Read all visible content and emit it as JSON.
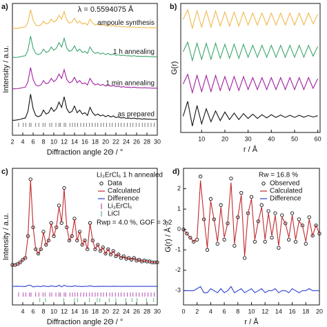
{
  "chart_data": [
    {
      "type": "line",
      "panel": "a)",
      "title": "λ = 0.5594075 Å",
      "xlabel": "Diffraction angle 2Θ / °",
      "ylabel": "Intensity / a.u.",
      "legend": "inline",
      "x": [
        2,
        2.5,
        3,
        3.5,
        4,
        4.5,
        5,
        5.5,
        6,
        6.5,
        7,
        7.5,
        8,
        8.5,
        9,
        9.5,
        10,
        10.5,
        11,
        11.5,
        12,
        12.5,
        13,
        13.5,
        14,
        14.5,
        15,
        15.5,
        16,
        16.5,
        17,
        17.5,
        18,
        18.5,
        19,
        19.5,
        20,
        20.5,
        21,
        21.5,
        22,
        22.5,
        23,
        23.5,
        24,
        24.5,
        25,
        25.5,
        26,
        26.5,
        27,
        27.5,
        28,
        28.5,
        29,
        29.5,
        30
      ],
      "xlim": [
        2,
        30
      ],
      "xticks": [
        2,
        4,
        6,
        8,
        10,
        12,
        14,
        16,
        18,
        20,
        22,
        24,
        26,
        28,
        30
      ],
      "ylim": [
        -4,
        105
      ],
      "series": [
        {
          "name": "ampoule synthesis",
          "color": "#f0b84a",
          "values": [
            84.3,
            84.3,
            84.5,
            84.8,
            85.3,
            85.6,
            89.6,
            100,
            91.2,
            87.2,
            86.4,
            87.2,
            90.4,
            88,
            88.8,
            92,
            89.6,
            91.2,
            95.2,
            92,
            98.4,
            91.2,
            88.8,
            89.6,
            92.8,
            88.8,
            90.4,
            88,
            88.8,
            87.2,
            92,
            88.8,
            87.2,
            88,
            86.9,
            87.5,
            86.4,
            87.2,
            86.2,
            86.9,
            85.9,
            86.2,
            85.6,
            85.9,
            85.4,
            85.6,
            85.3,
            85.6,
            85.1,
            85.3,
            85,
            85.1,
            85,
            85,
            84.8,
            84.8,
            84.8
          ]
        },
        {
          "name": "1 h annealing",
          "color": "#3aa56b",
          "values": [
            60.4,
            60.4,
            60.5,
            60.9,
            61.4,
            61.8,
            66.3,
            78,
            68.1,
            63.6,
            62.7,
            63.6,
            67.2,
            64.5,
            65.4,
            69,
            66.3,
            68.1,
            72.6,
            69,
            76.2,
            68.1,
            65.4,
            66.3,
            69.9,
            65.4,
            67.2,
            64.5,
            65.4,
            63.6,
            69,
            65.4,
            63.6,
            64.5,
            63.2,
            64,
            62.7,
            63.6,
            62.5,
            63.2,
            62.2,
            62.5,
            61.8,
            62.2,
            61.6,
            61.8,
            61.4,
            61.8,
            61.3,
            61.4,
            61.1,
            61.3,
            61.1,
            61.1,
            60.9,
            60.9,
            60.9
          ]
        },
        {
          "name": "1 min annealing",
          "color": "#a020a0",
          "values": [
            34.4,
            34.4,
            34.5,
            34.9,
            35.4,
            35.8,
            40.3,
            52,
            42.1,
            37.6,
            36.7,
            37.6,
            41.2,
            38.5,
            39.4,
            43,
            40.3,
            42.1,
            46.6,
            43,
            50.2,
            42.1,
            39.4,
            40.3,
            43.9,
            39.4,
            41.2,
            38.5,
            39.4,
            37.6,
            43,
            39.4,
            37.6,
            38.5,
            37.2,
            38,
            36.7,
            37.6,
            36.5,
            37.2,
            36.2,
            36.5,
            35.8,
            36.2,
            35.6,
            35.8,
            35.4,
            35.8,
            35.3,
            35.4,
            35.1,
            35.3,
            35.1,
            35.1,
            34.9,
            34.9,
            34.9
          ]
        },
        {
          "name": "as prepared",
          "color": "#111111",
          "values": [
            8.4,
            8.4,
            8.7,
            9.1,
            9.8,
            10.2,
            15.7,
            30,
            17.9,
            12.4,
            11.3,
            12.4,
            16.8,
            13.5,
            14.6,
            19,
            15.7,
            17.9,
            23.4,
            19,
            27.8,
            17.9,
            14.6,
            15.7,
            20.1,
            14.6,
            16.8,
            13.5,
            14.6,
            12.4,
            19,
            14.6,
            12.4,
            13.5,
            12,
            12.8,
            11.3,
            12.4,
            11.1,
            12,
            10.6,
            11.1,
            10.2,
            10.6,
            10,
            10.2,
            9.8,
            10.2,
            9.5,
            9.8,
            9.3,
            9.5,
            9.3,
            9.3,
            9.1,
            9.1,
            9.1
          ]
        }
      ],
      "reflections": [
        {
          "color": "#555555",
          "positions": [
            3.2,
            4.1,
            4.6,
            5.3,
            5.6,
            6.5,
            7.1,
            7.9,
            8.3,
            9.2,
            9.6,
            10.4,
            11,
            11.3,
            12,
            12.3,
            13.1,
            13.6,
            14.1,
            14.6,
            15.2,
            15.8,
            16.3,
            16.9,
            17.4,
            18,
            18.5,
            19.1,
            19.6,
            20.2,
            20.8,
            21.3,
            21.9,
            22.5,
            23,
            23.6,
            24.2,
            24.8,
            25.3,
            25.9,
            26.5,
            27.1,
            27.6,
            28.2,
            28.8,
            29.4
          ]
        }
      ]
    },
    {
      "type": "line",
      "panel": "b)",
      "xlabel": "r / Å",
      "ylabel": "G(r)",
      "x": [
        2,
        4,
        6,
        8,
        10,
        12,
        14,
        16,
        18,
        20,
        22,
        24,
        26,
        28,
        30,
        32,
        34,
        36,
        38,
        40,
        42,
        44,
        46,
        48,
        50,
        52,
        54,
        56,
        58,
        60
      ],
      "xlim": [
        1,
        61
      ],
      "xticks": [
        10,
        20,
        30,
        40,
        50,
        60
      ],
      "ylim": [
        -1.5,
        10.5
      ],
      "series": [
        {
          "color": "#f0b84a",
          "values": [
            9,
            9.9,
            8.2,
            9.8,
            8.3,
            9.8,
            8.3,
            9.8,
            8.4,
            9.7,
            8.4,
            9.7,
            8.4,
            9.7,
            8.5,
            9.6,
            8.5,
            9.6,
            8.5,
            9.6,
            8.5,
            9.6,
            8.5,
            9.6,
            8.5,
            9.6,
            8.5,
            9.6,
            8.6,
            9.5
          ]
        },
        {
          "color": "#3aa56b",
          "values": [
            6,
            6.9,
            5.2,
            6.8,
            5.3,
            6.8,
            5.3,
            6.8,
            5.4,
            6.7,
            5.4,
            6.7,
            5.4,
            6.7,
            5.5,
            6.6,
            5.5,
            6.6,
            5.5,
            6.6,
            5.5,
            6.6,
            5.5,
            6.6,
            5.5,
            6.6,
            5.5,
            6.6,
            5.6,
            6.5
          ]
        },
        {
          "color": "#a020a0",
          "values": [
            3,
            3.9,
            2.2,
            3.8,
            2.3,
            3.8,
            2.3,
            3.8,
            2.4,
            3.7,
            2.4,
            3.7,
            2.4,
            3.7,
            2.5,
            3.6,
            2.5,
            3.6,
            2.5,
            3.6,
            2.5,
            3.6,
            2.5,
            3.6,
            2.5,
            3.6,
            2.5,
            3.6,
            2.6,
            3.5
          ]
        },
        {
          "color": "#111111",
          "values": [
            0,
            1.4,
            -0.9,
            1,
            -0.7,
            0.7,
            -0.5,
            0.5,
            -0.4,
            0.4,
            -0.3,
            0.3,
            -0.3,
            0.25,
            -0.2,
            0.2,
            -0.2,
            0.15,
            -0.15,
            0.15,
            -0.1,
            0.12,
            -0.1,
            0.1,
            -0.1,
            0.1,
            -0.08,
            0.08,
            -0.06,
            0.06
          ]
        }
      ]
    },
    {
      "type": "line",
      "panel": "c)",
      "xlabel": "Diffraction angle 2Θ / °",
      "ylabel": "Intensity / a.u.",
      "legend": "upper right",
      "annotations": [
        "Li₃ErCl₆ 1 h annealed",
        "Rwp = 4.0 %, GOF = 3.2"
      ],
      "x": [
        2,
        2.5,
        3,
        3.5,
        4,
        4.5,
        5,
        5.5,
        6,
        6.5,
        7,
        7.5,
        8,
        8.5,
        9,
        9.5,
        10,
        10.5,
        11,
        11.5,
        12,
        12.5,
        13,
        13.5,
        14,
        14.5,
        15,
        15.5,
        16,
        16.5,
        17,
        17.5,
        18,
        18.5,
        19,
        19.5,
        20,
        20.5,
        21,
        21.5,
        22,
        22.5,
        23,
        23.5,
        24,
        24.5,
        25,
        25.5,
        26,
        26.5,
        27,
        27.5,
        28,
        28.5,
        29,
        29.5,
        30
      ],
      "xlim": [
        2,
        30
      ],
      "xticks": [
        4,
        6,
        8,
        10,
        12,
        14,
        16,
        18,
        20,
        22,
        24,
        26,
        28,
        30
      ],
      "ylim": [
        -25,
        100
      ],
      "series": [
        {
          "name": "Data",
          "color": "#111111",
          "marker": "circle",
          "values": [
            11.6,
            11.6,
            12.4,
            14,
            16.4,
            18,
            38,
            90,
            46,
            26,
            22,
            26,
            42,
            30,
            34,
            50,
            38,
            46,
            66,
            50,
            82,
            46,
            34,
            38,
            54,
            34,
            42,
            30,
            34,
            26,
            50,
            34,
            26,
            30,
            24.4,
            27.6,
            22,
            26,
            21.2,
            24.4,
            19.6,
            21.2,
            18,
            19.6,
            17.2,
            18,
            16.4,
            18,
            15.6,
            16.4,
            14.8,
            15.6,
            14.8,
            14.8,
            14,
            14,
            14
          ]
        },
        {
          "name": "Calculated",
          "color": "#c0282e",
          "values": [
            11.5,
            11.6,
            12.3,
            14,
            16.5,
            18.2,
            37,
            89,
            46.5,
            26,
            22,
            26.2,
            41.5,
            30,
            34.2,
            49.5,
            38,
            46.2,
            65,
            50.5,
            81,
            46,
            34,
            38.2,
            53.5,
            34,
            42,
            30.2,
            34,
            26,
            49.5,
            34,
            26.2,
            30,
            24.5,
            27.5,
            22,
            26,
            21.3,
            24.3,
            19.6,
            21.2,
            18.1,
            19.6,
            17.2,
            18,
            16.5,
            18,
            15.6,
            16.4,
            14.8,
            15.6,
            14.8,
            14.8,
            14,
            14,
            14
          ]
        },
        {
          "name": "Difference",
          "color": "#2a3fd1",
          "values": [
            -8,
            -8,
            -7.9,
            -8,
            -8.1,
            -8.2,
            -7,
            -7,
            -8.5,
            -8,
            -8,
            -8.2,
            -7.5,
            -8,
            -8.2,
            -7.5,
            -8,
            -8.2,
            -7,
            -8.5,
            -7,
            -8,
            -8,
            -8.2,
            -7.5,
            -8,
            -8,
            -8.2,
            -8,
            -8,
            -7.5,
            -8,
            -8.2,
            -8,
            -8.1,
            -7.9,
            -8,
            -8,
            -8.1,
            -7.9,
            -8,
            -8,
            -8.1,
            -8,
            -8,
            -8,
            -8.1,
            -8,
            -8,
            -8,
            -8,
            -8,
            -8,
            -8,
            -8,
            -8,
            -8
          ]
        }
      ],
      "reflections": [
        {
          "name": "Li₃ErCl₆",
          "color": "#a020a0",
          "positions": [
            3.2,
            4.1,
            4.6,
            5.3,
            5.6,
            6.5,
            7.1,
            7.9,
            8.3,
            9.2,
            9.6,
            10.4,
            11,
            11.3,
            12,
            12.3,
            13.1,
            13.6,
            14.1,
            14.6,
            15.2,
            15.8,
            16.3,
            16.9,
            17.4,
            18,
            18.5,
            19.1,
            19.6,
            20.2,
            20.8,
            21.3,
            21.9,
            22.5,
            23,
            23.6,
            24.2,
            24.8,
            25.3,
            25.9,
            26.5,
            27.1,
            27.6,
            28.2,
            28.8,
            29.4
          ]
        },
        {
          "name": "LiCl",
          "color": "#3aa56b",
          "positions": [
            7.3,
            8.4,
            11.9,
            14,
            14.6,
            16.9,
            18.4,
            18.9,
            20.7,
            22,
            23.9,
            25.1,
            26.1,
            27.9,
            29.3
          ]
        }
      ]
    },
    {
      "type": "line",
      "panel": "d)",
      "xlabel": "r / Å",
      "ylabel": "G(r) / Å⁻²",
      "legend": "upper right",
      "annotations": [
        "Rw = 16.8 %"
      ],
      "x": [
        0,
        0.5,
        1,
        1.5,
        2,
        2.5,
        3,
        3.5,
        4,
        4.5,
        5,
        5.5,
        6,
        6.5,
        7,
        7.5,
        8,
        8.5,
        9,
        9.5,
        10,
        10.5,
        11,
        11.5,
        12,
        12.5,
        13,
        13.5,
        14,
        14.5,
        15,
        15.5,
        16,
        16.5,
        17,
        17.5,
        18,
        18.5,
        19,
        19.5,
        20
      ],
      "xlim": [
        0,
        20
      ],
      "xticks": [
        0,
        2,
        4,
        6,
        8,
        10,
        12,
        14,
        16,
        18,
        20
      ],
      "ylim": [
        -3.7,
        3
      ],
      "yticks": [
        -3,
        -2,
        -1,
        0,
        1,
        2
      ],
      "series": [
        {
          "name": "Observed",
          "color": "#111111",
          "marker": "circle",
          "values": [
            0,
            -0.2,
            -0.4,
            -0.6,
            -0.5,
            2.6,
            0.5,
            -1,
            1.5,
            0.5,
            -0.7,
            1.2,
            -0.5,
            0.3,
            2.5,
            -0.8,
            0.6,
            1.8,
            -1.4,
            0.8,
            1.6,
            -0.6,
            0.4,
            1.2,
            -0.6,
            0.9,
            -0.4,
            0.8,
            -0.9,
            0.7,
            0.3,
            -0.5,
            0.8,
            -0.6,
            0.5,
            0.2,
            -0.7,
            0.6,
            -0.3,
            0.2,
            -0.2
          ]
        },
        {
          "name": "Calculated",
          "color": "#c0282e",
          "values": [
            0,
            -0.2,
            -0.4,
            -0.6,
            -0.4,
            2.4,
            0.6,
            -0.9,
            1.4,
            0.5,
            -0.6,
            1.1,
            -0.4,
            0.3,
            2.3,
            -0.7,
            0.6,
            1.7,
            -1.3,
            0.8,
            1.5,
            -0.5,
            0.4,
            1.1,
            -0.5,
            0.8,
            -0.3,
            0.7,
            -0.8,
            0.6,
            0.3,
            -0.4,
            0.7,
            -0.5,
            0.4,
            0.2,
            -0.6,
            0.5,
            -0.3,
            0.2,
            -0.2
          ]
        },
        {
          "name": "Difference",
          "color": "#2a3fd1",
          "values": [
            -3,
            -3,
            -3,
            -3,
            -2.9,
            -2.8,
            -3.1,
            -3.1,
            -2.9,
            -3,
            -3.1,
            -2.9,
            -3.1,
            -3,
            -2.8,
            -3.1,
            -3,
            -2.9,
            -3.1,
            -3,
            -2.9,
            -3.1,
            -3,
            -2.9,
            -3.1,
            -3,
            -3,
            -2.9,
            -3.1,
            -3,
            -3,
            -3.1,
            -2.9,
            -3,
            -3.1,
            -3,
            -3,
            -2.9,
            -3,
            -3,
            -3
          ]
        }
      ]
    }
  ]
}
